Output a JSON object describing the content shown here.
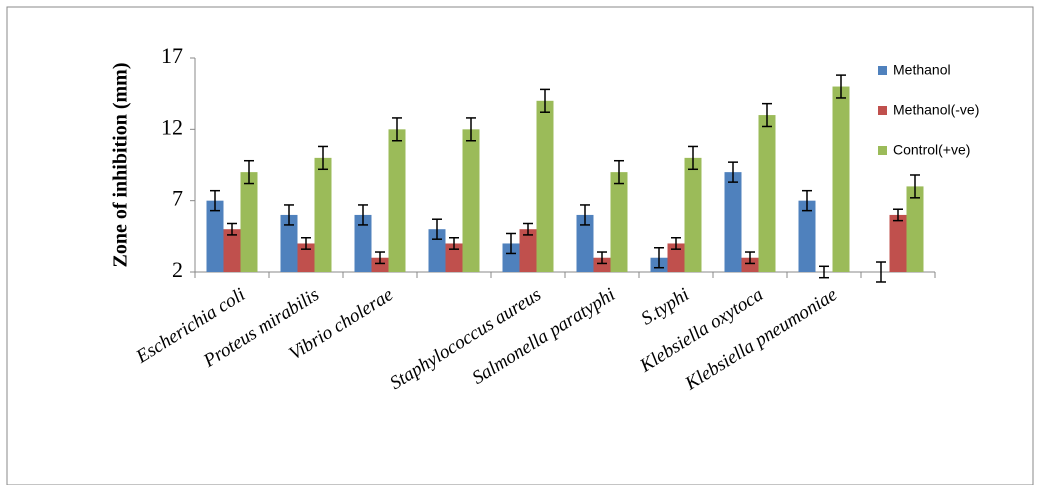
{
  "chart_data": {
    "type": "bar",
    "y_label": "Zone of inhibition (mm)",
    "categories": [
      "Escherichia coli",
      "Proteus mirabilis",
      "Vibrio cholerae",
      null,
      "Staphylococcus aureus",
      "Salmonella paratyphi",
      "S.typhi",
      "Klebsiella oxytoca",
      "Klebsiella pneumoniae",
      null
    ],
    "series": [
      {
        "name": "Methanol",
        "color": "#4f81bd",
        "values": [
          7,
          6,
          6,
          5,
          4,
          6,
          3,
          9,
          7,
          2
        ],
        "errors": [
          0.7,
          0.7,
          0.7,
          0.7,
          0.7,
          0.7,
          0.7,
          0.7,
          0.7,
          0.7
        ]
      },
      {
        "name": "Methanol(-ve)",
        "color": "#c0504d",
        "values": [
          5,
          4,
          3,
          4,
          5,
          3,
          4,
          3,
          2,
          6
        ],
        "errors": [
          0.4,
          0.4,
          0.4,
          0.4,
          0.4,
          0.4,
          0.4,
          0.4,
          0.4,
          0.4
        ]
      },
      {
        "name": "Control(+ve)",
        "color": "#9bbb59",
        "values": [
          9,
          10,
          12,
          12,
          14,
          9,
          10,
          13,
          15,
          8
        ],
        "errors": [
          0.8,
          0.8,
          0.8,
          0.8,
          0.8,
          0.8,
          0.8,
          0.8,
          0.8,
          0.8
        ]
      }
    ],
    "ylim": [
      2,
      17
    ],
    "yticks": [
      2,
      7,
      12,
      17
    ],
    "legend": "right"
  }
}
